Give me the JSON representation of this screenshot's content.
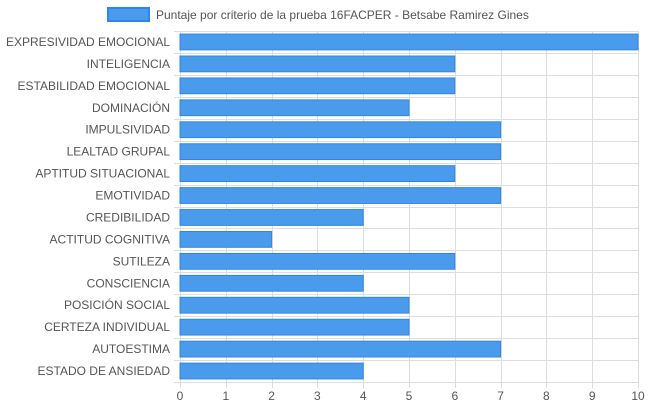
{
  "chart_data": {
    "type": "bar",
    "orientation": "horizontal",
    "categories": [
      "EXPRESIVIDAD EMOCIONAL",
      "INTELIGENCIA",
      "ESTABILIDAD EMOCIONAL",
      "DOMINACIÓN",
      "IMPULSIVIDAD",
      "LEALTAD GRUPAL",
      "APTITUD SITUACIONAL",
      "EMOTIVIDAD",
      "CREDIBILIDAD",
      "ACTITUD COGNITIVA",
      "SUTILEZA",
      "CONSCIENCIA",
      "POSICIÓN SOCIAL",
      "CERTEZA INDIVIDUAL",
      "AUTOESTIMA",
      "ESTADO DE ANSIEDAD"
    ],
    "series": [
      {
        "name": "Puntaje por criterio de la prueba 16FACPER - Betsabe Ramirez Gines",
        "values": [
          10,
          6,
          6,
          5,
          7,
          7,
          6,
          7,
          4,
          2,
          6,
          4,
          5,
          5,
          7,
          4
        ]
      }
    ],
    "xlim": [
      0,
      10
    ],
    "xticks": [
      0,
      1,
      2,
      3,
      4,
      5,
      6,
      7,
      8,
      9,
      10
    ],
    "grid": true,
    "legend_position": "top",
    "colors": {
      "bar_fill": "#4a9bec",
      "bar_border": "#2f86e6",
      "grid": "#dddddd",
      "axis_text": "#555555"
    }
  }
}
